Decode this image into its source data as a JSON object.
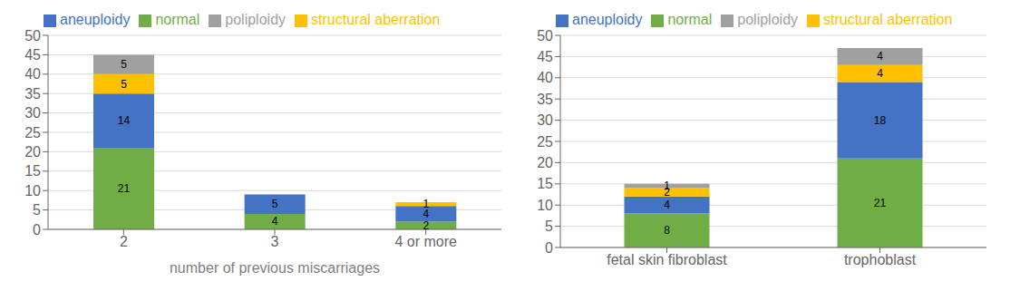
{
  "chart_data": [
    {
      "type": "bar",
      "stacked": true,
      "data_labels": true,
      "grid": true,
      "legend": "upper left",
      "x_label": "number of previous miscarriages",
      "categories": [
        "2",
        "3",
        "4 or more"
      ],
      "series": [
        {
          "name": "normal",
          "color": "#70ad47",
          "values": [
            21,
            4,
            2
          ]
        },
        {
          "name": "aneuploidy",
          "color": "#4472c4",
          "values": [
            14,
            5,
            4
          ]
        },
        {
          "name": "structural aberration",
          "color": "#ffc000",
          "values": [
            5,
            0,
            1
          ]
        },
        {
          "name": "poliploidy",
          "color": "#a0a0a0",
          "values": [
            5,
            0,
            0
          ]
        }
      ],
      "ylim": [
        0,
        50
      ],
      "yticks": [
        0,
        5,
        10,
        15,
        20,
        25,
        30,
        35,
        40,
        45,
        50
      ]
    },
    {
      "type": "bar",
      "stacked": true,
      "data_labels": true,
      "grid": true,
      "legend": "upper left",
      "categories": [
        "fetal skin fibroblast",
        "trophoblast"
      ],
      "series": [
        {
          "name": "normal",
          "color": "#70ad47",
          "values": [
            8,
            21
          ]
        },
        {
          "name": "aneuploidy",
          "color": "#4472c4",
          "values": [
            4,
            18
          ]
        },
        {
          "name": "structural aberration",
          "color": "#ffc000",
          "values": [
            2,
            4
          ]
        },
        {
          "name": "poliploidy",
          "color": "#a0a0a0",
          "values": [
            1,
            4
          ]
        }
      ],
      "ylim": [
        0,
        50
      ],
      "yticks": [
        0,
        5,
        10,
        15,
        20,
        25,
        30,
        35,
        40,
        45,
        50
      ]
    }
  ]
}
